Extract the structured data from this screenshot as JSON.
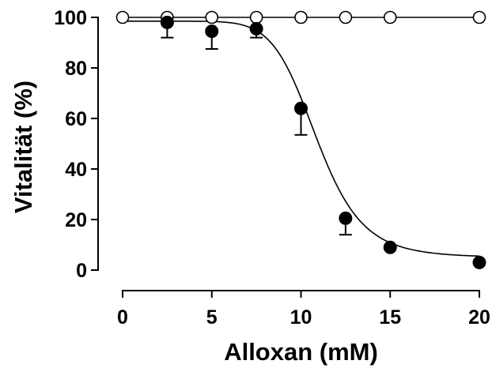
{
  "chart_data": {
    "type": "scatter",
    "title": "",
    "xlabel": "Alloxan (mM)",
    "ylabel": "Vitalität (%)",
    "xlim": [
      0,
      20
    ],
    "ylim": [
      0,
      100
    ],
    "x_ticks": [
      "0",
      "5",
      "10",
      "15",
      "20"
    ],
    "y_ticks": [
      "0",
      "20",
      "40",
      "60",
      "80",
      "100"
    ],
    "x_tick_values": [
      0,
      5,
      10,
      15,
      20
    ],
    "y_tick_values": [
      0,
      20,
      40,
      60,
      80,
      100
    ],
    "grid": false,
    "legend": "none",
    "series": [
      {
        "marker": "open-circle",
        "x": [
          0,
          2.5,
          5,
          7.5,
          10,
          12.5,
          15,
          20
        ],
        "y": [
          100,
          100,
          100,
          100,
          100,
          100,
          100,
          100
        ],
        "error": [
          0,
          0,
          0,
          0,
          0,
          0,
          0,
          0
        ],
        "line": "straight",
        "color": "#000000"
      },
      {
        "marker": "filled-circle",
        "x": [
          2.5,
          5,
          7.5,
          10,
          12.5,
          15,
          20
        ],
        "y": [
          98,
          94.5,
          95.5,
          64,
          20.5,
          9,
          3
        ],
        "error": [
          6,
          7,
          3.5,
          10.5,
          6.5,
          0,
          0
        ],
        "error_direction": "down",
        "fit": {
          "type": "sigmoid",
          "top": 98.5,
          "bottom": 5,
          "ec50": 10.9,
          "hill": 8.5
        },
        "color": "#000000"
      }
    ]
  }
}
